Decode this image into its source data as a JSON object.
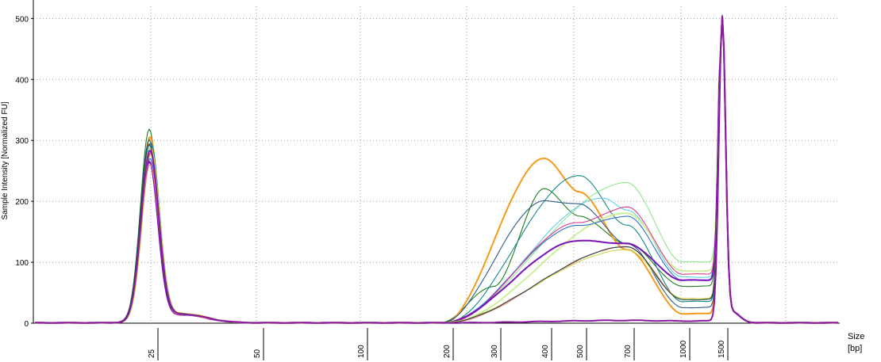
{
  "chart_data": {
    "type": "line",
    "title": "",
    "ylabel": "Sample Intensity [Normalized FU]",
    "xlabel": "Size",
    "xunit": "[bp]",
    "ylim": [
      0,
      520
    ],
    "y_ticks": [
      "0",
      "100",
      "200",
      "300",
      "400",
      "500"
    ],
    "x_ticks": [
      "25",
      "50",
      "100",
      "200",
      "300",
      "400",
      "500",
      "700",
      "1000",
      "1500"
    ],
    "x_tick_bp": [
      25,
      50,
      100,
      200,
      300,
      400,
      500,
      700,
      1000,
      1500
    ],
    "grid": true,
    "scale": "log-like ladder",
    "peaks": {
      "lower_marker": {
        "size_bp": 25,
        "height_range": [
          250,
          312
        ]
      },
      "upper_marker": {
        "size_bp": 1500,
        "height": 497
      }
    },
    "series": [
      {
        "values": [
          [
            25,
            312
          ],
          [
            300,
            60
          ],
          [
            400,
            220
          ],
          [
            500,
            175
          ],
          [
            700,
            130
          ],
          [
            1000,
            60
          ],
          [
            1500,
            495
          ]
        ]
      },
      {
        "values": [
          [
            25,
            300
          ],
          [
            400,
            270
          ],
          [
            500,
            215
          ],
          [
            700,
            120
          ],
          [
            1000,
            15
          ],
          [
            1500,
            495
          ]
        ]
      },
      {
        "values": [
          [
            25,
            290
          ],
          [
            500,
            242
          ],
          [
            700,
            160
          ],
          [
            1000,
            35
          ],
          [
            1500,
            497
          ]
        ]
      },
      {
        "values": [
          [
            25,
            280
          ],
          [
            700,
            230
          ],
          [
            1000,
            100
          ],
          [
            1500,
            495
          ]
        ]
      },
      {
        "values": [
          [
            25,
            285
          ],
          [
            600,
            205
          ],
          [
            700,
            185
          ],
          [
            1000,
            75
          ],
          [
            1500,
            495
          ]
        ]
      },
      {
        "values": [
          [
            25,
            270
          ],
          [
            700,
            180
          ],
          [
            1000,
            85
          ],
          [
            1500,
            495
          ]
        ]
      },
      {
        "values": [
          [
            25,
            295
          ],
          [
            400,
            200
          ],
          [
            500,
            195
          ],
          [
            700,
            130
          ],
          [
            1000,
            25
          ],
          [
            1500,
            495
          ]
        ]
      },
      {
        "values": [
          [
            25,
            265
          ],
          [
            500,
            160
          ],
          [
            700,
            175
          ],
          [
            1000,
            70
          ],
          [
            1500,
            495
          ]
        ]
      },
      {
        "values": [
          [
            25,
            275
          ],
          [
            500,
            165
          ],
          [
            700,
            190
          ],
          [
            1000,
            80
          ],
          [
            1500,
            495
          ]
        ]
      },
      {
        "values": [
          [
            25,
            260
          ],
          [
            500,
            135
          ],
          [
            700,
            130
          ],
          [
            1000,
            70
          ],
          [
            1500,
            495
          ]
        ]
      },
      {
        "values": [
          [
            25,
            255
          ],
          [
            700,
            125
          ],
          [
            1000,
            40
          ],
          [
            1500,
            495
          ]
        ]
      },
      {
        "values": [
          [
            25,
            282
          ],
          [
            700,
            120
          ],
          [
            1000,
            40
          ],
          [
            1500,
            495
          ]
        ]
      },
      {
        "values": [
          [
            25,
            288
          ],
          [
            700,
            125
          ],
          [
            1000,
            38
          ],
          [
            1500,
            495
          ]
        ]
      },
      {
        "values": [
          [
            25,
            278
          ],
          [
            700,
            4
          ],
          [
            1000,
            3
          ],
          [
            1500,
            495
          ]
        ]
      }
    ]
  },
  "colors": {
    "grid": "#9a9a9a",
    "axis": "#000000",
    "series": [
      "#1e7f1e",
      "#f59a1a",
      "#138a8a",
      "#8fe88f",
      "#5ed1e8",
      "#ccf09a",
      "#2e5a86",
      "#2f6ed0",
      "#e03c8c",
      "#7a14b8",
      "#e88080",
      "#c8d84a",
      "#304040",
      "#8a1aa0"
    ]
  }
}
